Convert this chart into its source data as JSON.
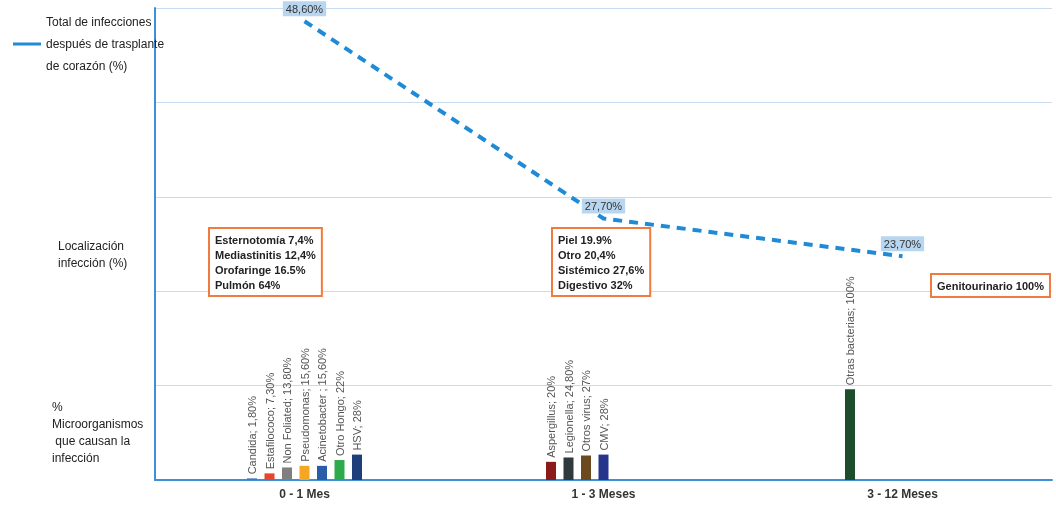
{
  "chart_data": {
    "type": "line",
    "categories": [
      "0 - 1 Mes",
      "1 - 3 Meses",
      "3 - 12 Meses"
    ],
    "series": [
      {
        "name": "Total de infecciones después de trasplante de corazón (%)",
        "color": "#1f8ad6",
        "values": [
          48.6,
          27.7,
          23.7
        ],
        "value_labels": [
          "48,60%",
          "27,70%",
          "23,70%"
        ],
        "line_style": "dashed",
        "marker": "none"
      },
      {
        "type": "bar",
        "axis": "y2",
        "color": "#4472c4",
        "values": [
          1.8,
          null,
          null
        ],
        "value_labels": [
          "Candida; 1,80%",
          null,
          null
        ]
      },
      {
        "type": "bar",
        "axis": "y2",
        "color": "#e8452c",
        "values": [
          7.3,
          null,
          null
        ],
        "value_labels": [
          "Estafilococo; 7,30%",
          null,
          null
        ]
      },
      {
        "type": "bar",
        "axis": "y2",
        "color": "#7f7f7f",
        "values": [
          13.8,
          null,
          null
        ],
        "value_labels": [
          "Non Foliated; 13,80%",
          null,
          null
        ]
      },
      {
        "type": "bar",
        "axis": "y2",
        "color": "#f5a623",
        "values": [
          15.6,
          null,
          null
        ],
        "value_labels": [
          "Pseudomonas; 15,60%",
          null,
          null
        ]
      },
      {
        "type": "bar",
        "axis": "y2",
        "color": "#2a5caa",
        "values": [
          15.6,
          null,
          null
        ],
        "value_labels": [
          "Acinetobacter ; 15,60%",
          null,
          null
        ]
      },
      {
        "type": "bar",
        "axis": "y2",
        "color": "#2eaa4a",
        "values": [
          22,
          null,
          null
        ],
        "value_labels": [
          "Otro Hongo; 22%",
          null,
          null
        ]
      },
      {
        "type": "bar",
        "axis": "y2",
        "color": "#1f3f7a",
        "values": [
          28,
          null,
          null
        ],
        "value_labels": [
          "HSV; 28%",
          null,
          null
        ]
      },
      {
        "type": "bar",
        "axis": "y2",
        "color": "#8b1a1a",
        "values": [
          null,
          20,
          null
        ],
        "value_labels": [
          null,
          "Aspergillus; 20%",
          null
        ]
      },
      {
        "type": "bar",
        "axis": "y2",
        "color": "#2f3a3f",
        "values": [
          null,
          24.8,
          null
        ],
        "value_labels": [
          null,
          "Legionella; 24,80%",
          null
        ]
      },
      {
        "type": "bar",
        "axis": "y2",
        "color": "#6b4a1f",
        "values": [
          null,
          27,
          null
        ],
        "value_labels": [
          null,
          "Otros virus; 27%",
          null
        ]
      },
      {
        "type": "bar",
        "axis": "y2",
        "color": "#27348b",
        "values": [
          null,
          28,
          null
        ],
        "value_labels": [
          null,
          "CMV; 28%",
          null
        ]
      },
      {
        "type": "bar",
        "axis": "y2",
        "color": "#1e4d2b",
        "values": [
          null,
          null,
          100
        ],
        "value_labels": [
          null,
          null,
          "Otras bacterias; 100%"
        ]
      }
    ],
    "ylim": [
      0,
      50
    ],
    "yticks": [
      {
        "value": 0,
        "label": null
      },
      {
        "value": 10,
        "label": null
      },
      {
        "value": 20,
        "label": null
      },
      {
        "value": 30,
        "label": null
      },
      {
        "value": 40,
        "label": null
      },
      {
        "value": 50,
        "label": null
      }
    ],
    "y2lim": [
      0,
      520
    ],
    "grid": "y",
    "legend": "top left",
    "tick_labels": "x",
    "annotations": [
      "Localización infección (%)",
      "% Microorganismos que causan la infección",
      "Esternotomía 7,4%\nMediastinitis 12,4%\nOrofaringe 16.5%\nPulmón 64%",
      "Piel 19.9%\nOtro 20,4%\nSistémico 27,6%\nDigestivo 32%",
      "Genitourinario 100%"
    ]
  }
}
